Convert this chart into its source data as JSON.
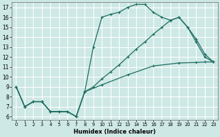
{
  "xlabel": "Humidex (Indice chaleur)",
  "bg_color": "#cde8e5",
  "grid_color": "#ffffff",
  "line_color": "#1a6b60",
  "xlim": [
    -0.5,
    23.5
  ],
  "ylim": [
    5.7,
    17.5
  ],
  "xticks": [
    0,
    1,
    2,
    3,
    4,
    5,
    6,
    7,
    8,
    9,
    10,
    11,
    12,
    13,
    14,
    15,
    16,
    17,
    18,
    19,
    20,
    21,
    22,
    23
  ],
  "yticks": [
    6,
    7,
    8,
    9,
    10,
    11,
    12,
    13,
    14,
    15,
    16,
    17
  ],
  "c1_x": [
    0,
    1,
    2,
    3,
    4,
    5,
    6,
    7,
    8,
    9,
    10,
    11,
    12,
    13,
    14,
    15,
    16,
    17,
    18,
    19,
    20,
    21,
    22,
    23
  ],
  "c1_y": [
    9,
    7,
    7.5,
    7.5,
    6.5,
    6.5,
    6.5,
    6,
    8.5,
    13,
    16,
    16.3,
    16.5,
    17,
    17.3,
    17.3,
    16.5,
    16,
    15.7,
    16,
    15,
    13.5,
    12,
    11.5
  ],
  "c2_x": [
    0,
    1,
    2,
    3,
    4,
    5,
    6,
    7,
    8,
    9,
    10,
    11,
    12,
    13,
    14,
    15,
    16,
    17,
    18,
    19,
    20,
    21,
    22,
    23
  ],
  "c2_y": [
    9,
    7,
    7.5,
    7.5,
    6.5,
    6.5,
    6.5,
    6,
    8.5,
    9.0,
    9.8,
    10.5,
    11.2,
    12.0,
    12.8,
    13.5,
    14.3,
    15.0,
    15.7,
    16.0,
    15.0,
    13.8,
    12.3,
    11.5
  ],
  "c3_x": [
    0,
    1,
    2,
    3,
    4,
    5,
    6,
    7,
    8,
    10,
    13,
    16,
    19,
    21,
    22,
    23
  ],
  "c3_y": [
    9,
    7,
    7.5,
    7.5,
    6.5,
    6.5,
    6.5,
    6,
    8.5,
    9.2,
    10.2,
    11.1,
    11.4,
    11.45,
    11.5,
    11.5
  ]
}
